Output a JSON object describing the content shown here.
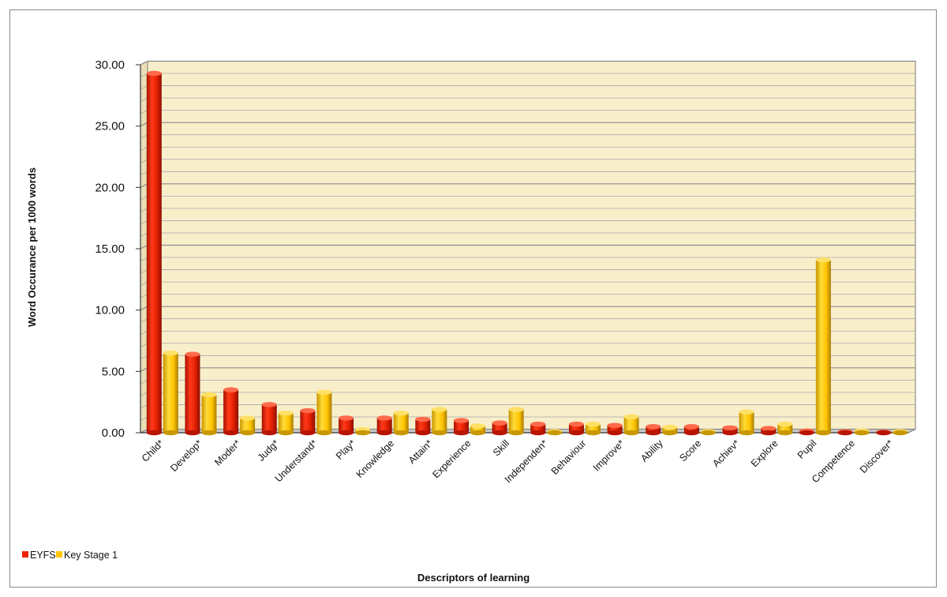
{
  "chart_data": {
    "type": "bar",
    "title": "",
    "xlabel": "Descriptors of learning",
    "ylabel": "Word Occurance per 1000 words",
    "ylim": [
      0,
      30
    ],
    "yticks": [
      "0.00",
      "5.00",
      "10.00",
      "15.00",
      "20.00",
      "25.00",
      "30.00"
    ],
    "grid": true,
    "legend_position": "bottom-left",
    "categories": [
      "Child*",
      "Develop*",
      "Moder*",
      "Judg*",
      "Understand*",
      "Play*",
      "Knowledge",
      "Attain*",
      "Experience",
      "Skill",
      "Independen*",
      "Behaviour",
      "Improve*",
      "Ability",
      "Score",
      "Achiev*",
      "Explore",
      "Pupil",
      "Competence",
      "Discover*"
    ],
    "series": [
      {
        "name": "EYFS",
        "color": "#ee2200",
        "values": [
          29.3,
          6.4,
          3.5,
          2.3,
          1.8,
          1.2,
          1.2,
          1.1,
          1.0,
          0.8,
          0.7,
          0.7,
          0.6,
          0.5,
          0.5,
          0.4,
          0.35,
          0.15,
          0.08,
          0.05
        ]
      },
      {
        "name": "Key Stage 1",
        "color": "#ffc600",
        "values": [
          6.5,
          3.1,
          1.2,
          1.6,
          3.3,
          0.25,
          1.6,
          1.9,
          0.55,
          1.9,
          0.1,
          0.7,
          1.3,
          0.45,
          0.1,
          1.7,
          0.7,
          14.1,
          0.15,
          0.1
        ]
      }
    ]
  }
}
